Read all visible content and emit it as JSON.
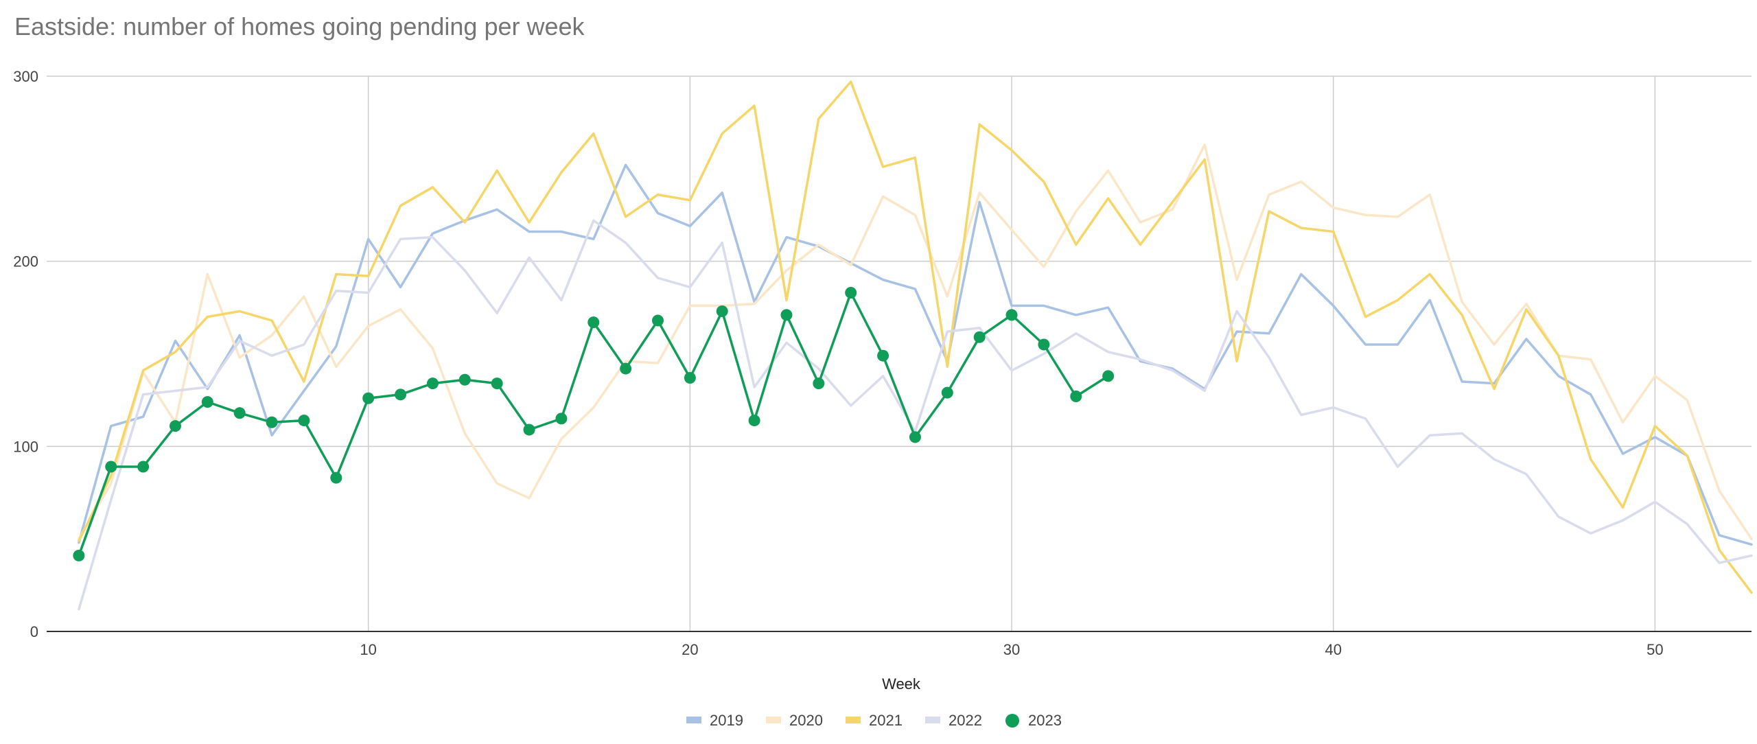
{
  "chart_data": {
    "type": "line",
    "title": "Eastside: number of homes going pending per week",
    "xlabel": "Week",
    "ylabel": "",
    "xlim": [
      0,
      53
    ],
    "ylim": [
      0,
      300
    ],
    "x_ticks": [
      10,
      20,
      30,
      40,
      50
    ],
    "y_ticks": [
      0,
      100,
      200,
      300
    ],
    "grid": true,
    "legend_position": "bottom",
    "series": [
      {
        "name": "2019",
        "color": "#a8c2e6",
        "markers": false,
        "x": [
          1,
          2,
          3,
          4,
          5,
          6,
          7,
          8,
          9,
          10,
          11,
          12,
          13,
          14,
          15,
          16,
          17,
          18,
          19,
          20,
          21,
          22,
          23,
          24,
          25,
          26,
          27,
          28,
          29,
          30,
          31,
          32,
          33,
          34,
          35,
          36,
          37,
          38,
          39,
          40,
          41,
          42,
          43,
          44,
          45,
          46,
          47,
          48,
          49,
          50,
          51,
          52,
          53
        ],
        "values": [
          48,
          111,
          116,
          157,
          131,
          160,
          106,
          130,
          154,
          212,
          186,
          215,
          222,
          228,
          216,
          216,
          212,
          252,
          226,
          219,
          237,
          178,
          213,
          208,
          199,
          190,
          185,
          146,
          232,
          176,
          176,
          171,
          175,
          146,
          142,
          131,
          162,
          161,
          193,
          176,
          155,
          155,
          179,
          135,
          134,
          158,
          138,
          128,
          96,
          105,
          95,
          52,
          47
        ]
      },
      {
        "name": "2020",
        "color": "#fbe6c8",
        "markers": false,
        "x": [
          1,
          2,
          3,
          4,
          5,
          6,
          7,
          8,
          9,
          10,
          11,
          12,
          13,
          14,
          15,
          16,
          17,
          18,
          19,
          20,
          21,
          22,
          23,
          24,
          25,
          26,
          27,
          28,
          29,
          30,
          31,
          32,
          33,
          34,
          35,
          36,
          37,
          38,
          39,
          40,
          41,
          42,
          43,
          44,
          45,
          46,
          47,
          48,
          49,
          50,
          51,
          52,
          53
        ],
        "values": [
          50,
          80,
          140,
          113,
          193,
          148,
          160,
          181,
          143,
          165,
          174,
          153,
          107,
          80,
          72,
          104,
          121,
          146,
          145,
          176,
          176,
          177,
          195,
          209,
          198,
          235,
          225,
          181,
          237,
          217,
          197,
          227,
          249,
          221,
          228,
          263,
          190,
          236,
          243,
          229,
          225,
          224,
          236,
          178,
          155,
          177,
          149,
          147,
          113,
          138,
          125,
          76,
          50
        ]
      },
      {
        "name": "2021",
        "color": "#f6d668",
        "markers": false,
        "x": [
          1,
          2,
          3,
          4,
          5,
          6,
          7,
          8,
          9,
          10,
          11,
          12,
          13,
          14,
          15,
          16,
          17,
          18,
          19,
          20,
          21,
          22,
          23,
          24,
          25,
          26,
          27,
          28,
          29,
          30,
          31,
          32,
          33,
          34,
          35,
          36,
          37,
          38,
          39,
          40,
          41,
          42,
          43,
          44,
          45,
          46,
          47,
          48,
          49,
          50,
          51,
          52,
          53
        ],
        "values": [
          49,
          84,
          141,
          151,
          170,
          173,
          168,
          135,
          193,
          192,
          230,
          240,
          221,
          249,
          221,
          248,
          269,
          224,
          236,
          233,
          269,
          284,
          179,
          277,
          297,
          251,
          256,
          143,
          274,
          260,
          243,
          209,
          234,
          209,
          232,
          255,
          146,
          227,
          218,
          216,
          170,
          179,
          193,
          171,
          131,
          174,
          149,
          93,
          67,
          111,
          95,
          44,
          21
        ]
      },
      {
        "name": "2022",
        "color": "#d9dcec",
        "markers": false,
        "x": [
          1,
          2,
          3,
          4,
          5,
          6,
          7,
          8,
          9,
          10,
          11,
          12,
          13,
          14,
          15,
          16,
          17,
          18,
          19,
          20,
          21,
          22,
          23,
          24,
          25,
          26,
          27,
          28,
          29,
          30,
          31,
          32,
          33,
          34,
          35,
          36,
          37,
          38,
          39,
          40,
          41,
          42,
          43,
          44,
          45,
          46,
          47,
          48,
          49,
          50,
          51,
          52,
          53
        ],
        "values": [
          12,
          71,
          128,
          130,
          132,
          157,
          149,
          155,
          184,
          183,
          212,
          213,
          195,
          172,
          202,
          179,
          222,
          210,
          191,
          186,
          210,
          132,
          156,
          142,
          122,
          138,
          108,
          162,
          164,
          141,
          150,
          161,
          151,
          147,
          141,
          130,
          173,
          148,
          117,
          121,
          115,
          89,
          106,
          107,
          93,
          85,
          62,
          53,
          60,
          70,
          58,
          37,
          41
        ]
      },
      {
        "name": "2023",
        "color": "#0f9d58",
        "markers": true,
        "x": [
          1,
          2,
          3,
          4,
          5,
          6,
          7,
          8,
          9,
          10,
          11,
          12,
          13,
          14,
          15,
          16,
          17,
          18,
          19,
          20,
          21,
          22,
          23,
          24,
          25,
          26,
          27,
          28,
          29,
          30,
          31,
          32,
          33
        ],
        "values": [
          41,
          89,
          89,
          111,
          124,
          118,
          113,
          114,
          83,
          126,
          128,
          134,
          136,
          134,
          109,
          115,
          167,
          142,
          168,
          137,
          173,
          114,
          171,
          134,
          183,
          149,
          105,
          129,
          159,
          171,
          155,
          127,
          138
        ]
      }
    ]
  }
}
